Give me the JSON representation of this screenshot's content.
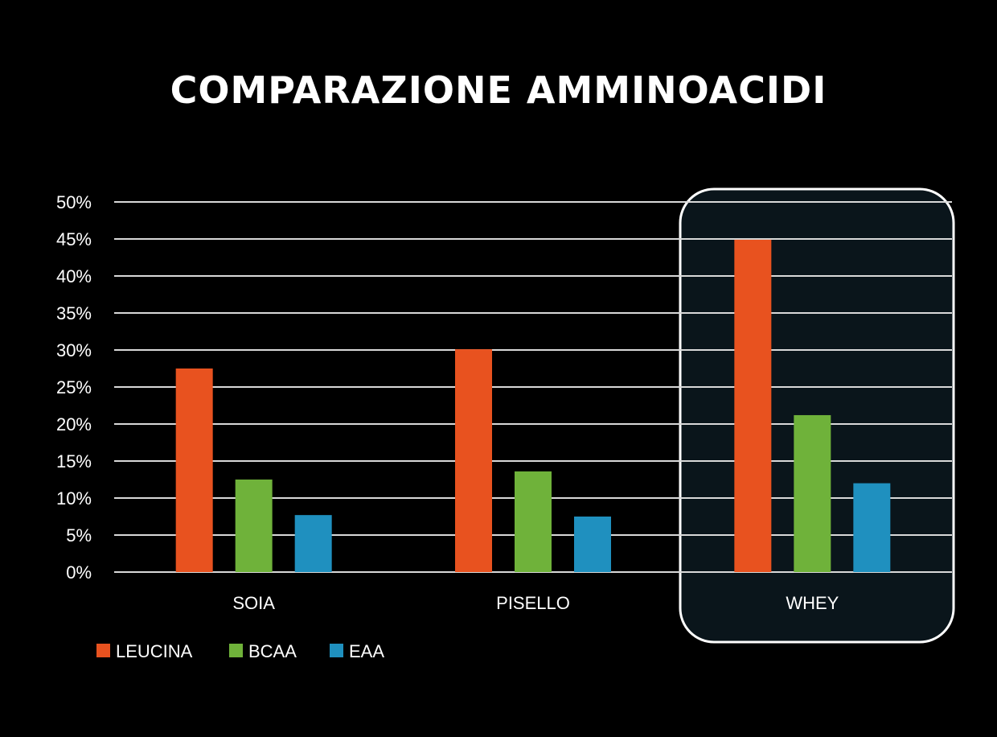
{
  "chart_data": {
    "type": "bar",
    "title": "COMPARAZIONE AMMINOACIDI",
    "xlabel": "",
    "ylabel": "",
    "categories": [
      "SOIA",
      "PISELLO",
      "WHEY"
    ],
    "series": [
      {
        "name": "LEUCINA",
        "color": "#e8521f",
        "values": [
          27.5,
          30.1,
          44.9
        ]
      },
      {
        "name": "BCAA",
        "color": "#6fb23a",
        "values": [
          12.5,
          13.6,
          21.2
        ]
      },
      {
        "name": "EAA",
        "color": "#1f90bf",
        "values": [
          7.7,
          7.5,
          12.0
        ]
      }
    ],
    "ylim": [
      0,
      50
    ],
    "yticks": [
      "0%",
      "5%",
      "10%",
      "15%",
      "20%",
      "25%",
      "30%",
      "35%",
      "40%",
      "45%",
      "50%"
    ],
    "grid": true,
    "legend_position": "bottom-left",
    "highlighted_category": "WHEY",
    "colors": {
      "background": "#000000",
      "highlight_fill": "#0a151b",
      "highlight_stroke": "#ffffff",
      "grid": "#d9d9d9"
    }
  }
}
